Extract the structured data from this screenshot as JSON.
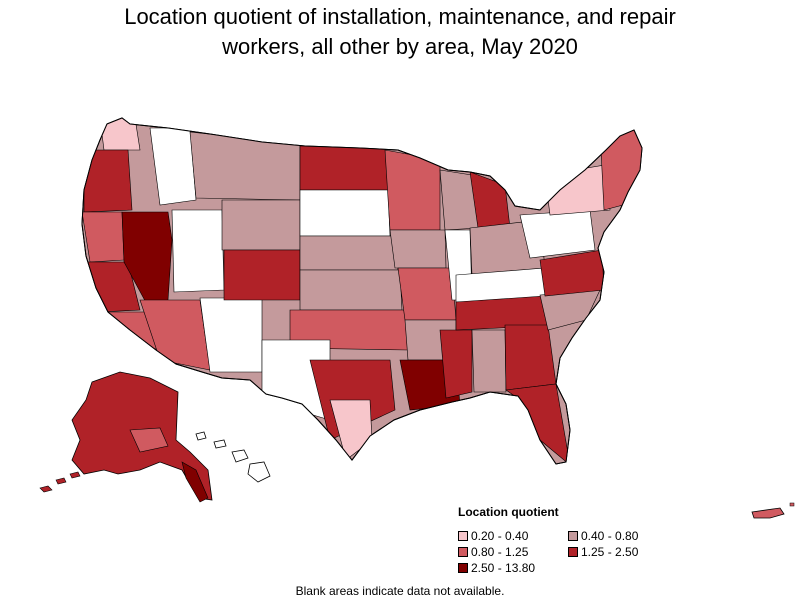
{
  "title": {
    "line1": "Location quotient of installation, maintenance, and repair",
    "line2": "workers, all other by area, May 2020"
  },
  "legend": {
    "title": "Location quotient",
    "items": [
      {
        "label": "0.20 - 0.40",
        "color": "#f7c6cb"
      },
      {
        "label": "0.40 - 0.80",
        "color": "#c49a9c"
      },
      {
        "label": "0.80 - 1.25",
        "color": "#d05a60"
      },
      {
        "label": "1.25 - 2.50",
        "color": "#b02228"
      },
      {
        "label": "2.50 - 13.80",
        "color": "#800000"
      }
    ]
  },
  "footnote": "Blank areas indicate data not available.",
  "colors": {
    "no_data": "#ffffff",
    "border": "#000000"
  }
}
